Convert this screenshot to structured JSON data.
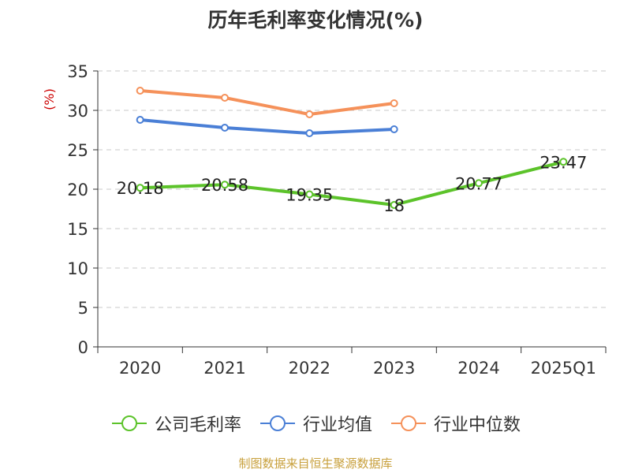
{
  "chart_data": {
    "type": "line",
    "title": "历年毛利率变化情况(%)",
    "ylabel": "(%)",
    "xlabel": "",
    "categories": [
      "2020",
      "2021",
      "2022",
      "2023",
      "2024",
      "2025Q1"
    ],
    "ylim": [
      0,
      35
    ],
    "yticks": [
      0,
      5,
      10,
      15,
      20,
      25,
      30,
      35
    ],
    "grid": "horizontal dashed",
    "legend_position": "bottom",
    "series": [
      {
        "name": "公司毛利率",
        "color": "#5cc32a",
        "values": [
          20.18,
          20.58,
          19.35,
          18,
          20.77,
          23.47
        ],
        "labels": [
          "20.18",
          "20.58",
          "19.35",
          "18",
          "20.77",
          "23.47"
        ]
      },
      {
        "name": "行业均值",
        "color": "#4a7fd6",
        "values": [
          28.8,
          27.8,
          27.1,
          27.6,
          null,
          null
        ]
      },
      {
        "name": "行业中位数",
        "color": "#f5915a",
        "values": [
          32.5,
          31.6,
          29.5,
          30.9,
          null,
          null
        ]
      }
    ]
  },
  "footer": {
    "source": "制图数据来自恒生聚源数据库"
  }
}
